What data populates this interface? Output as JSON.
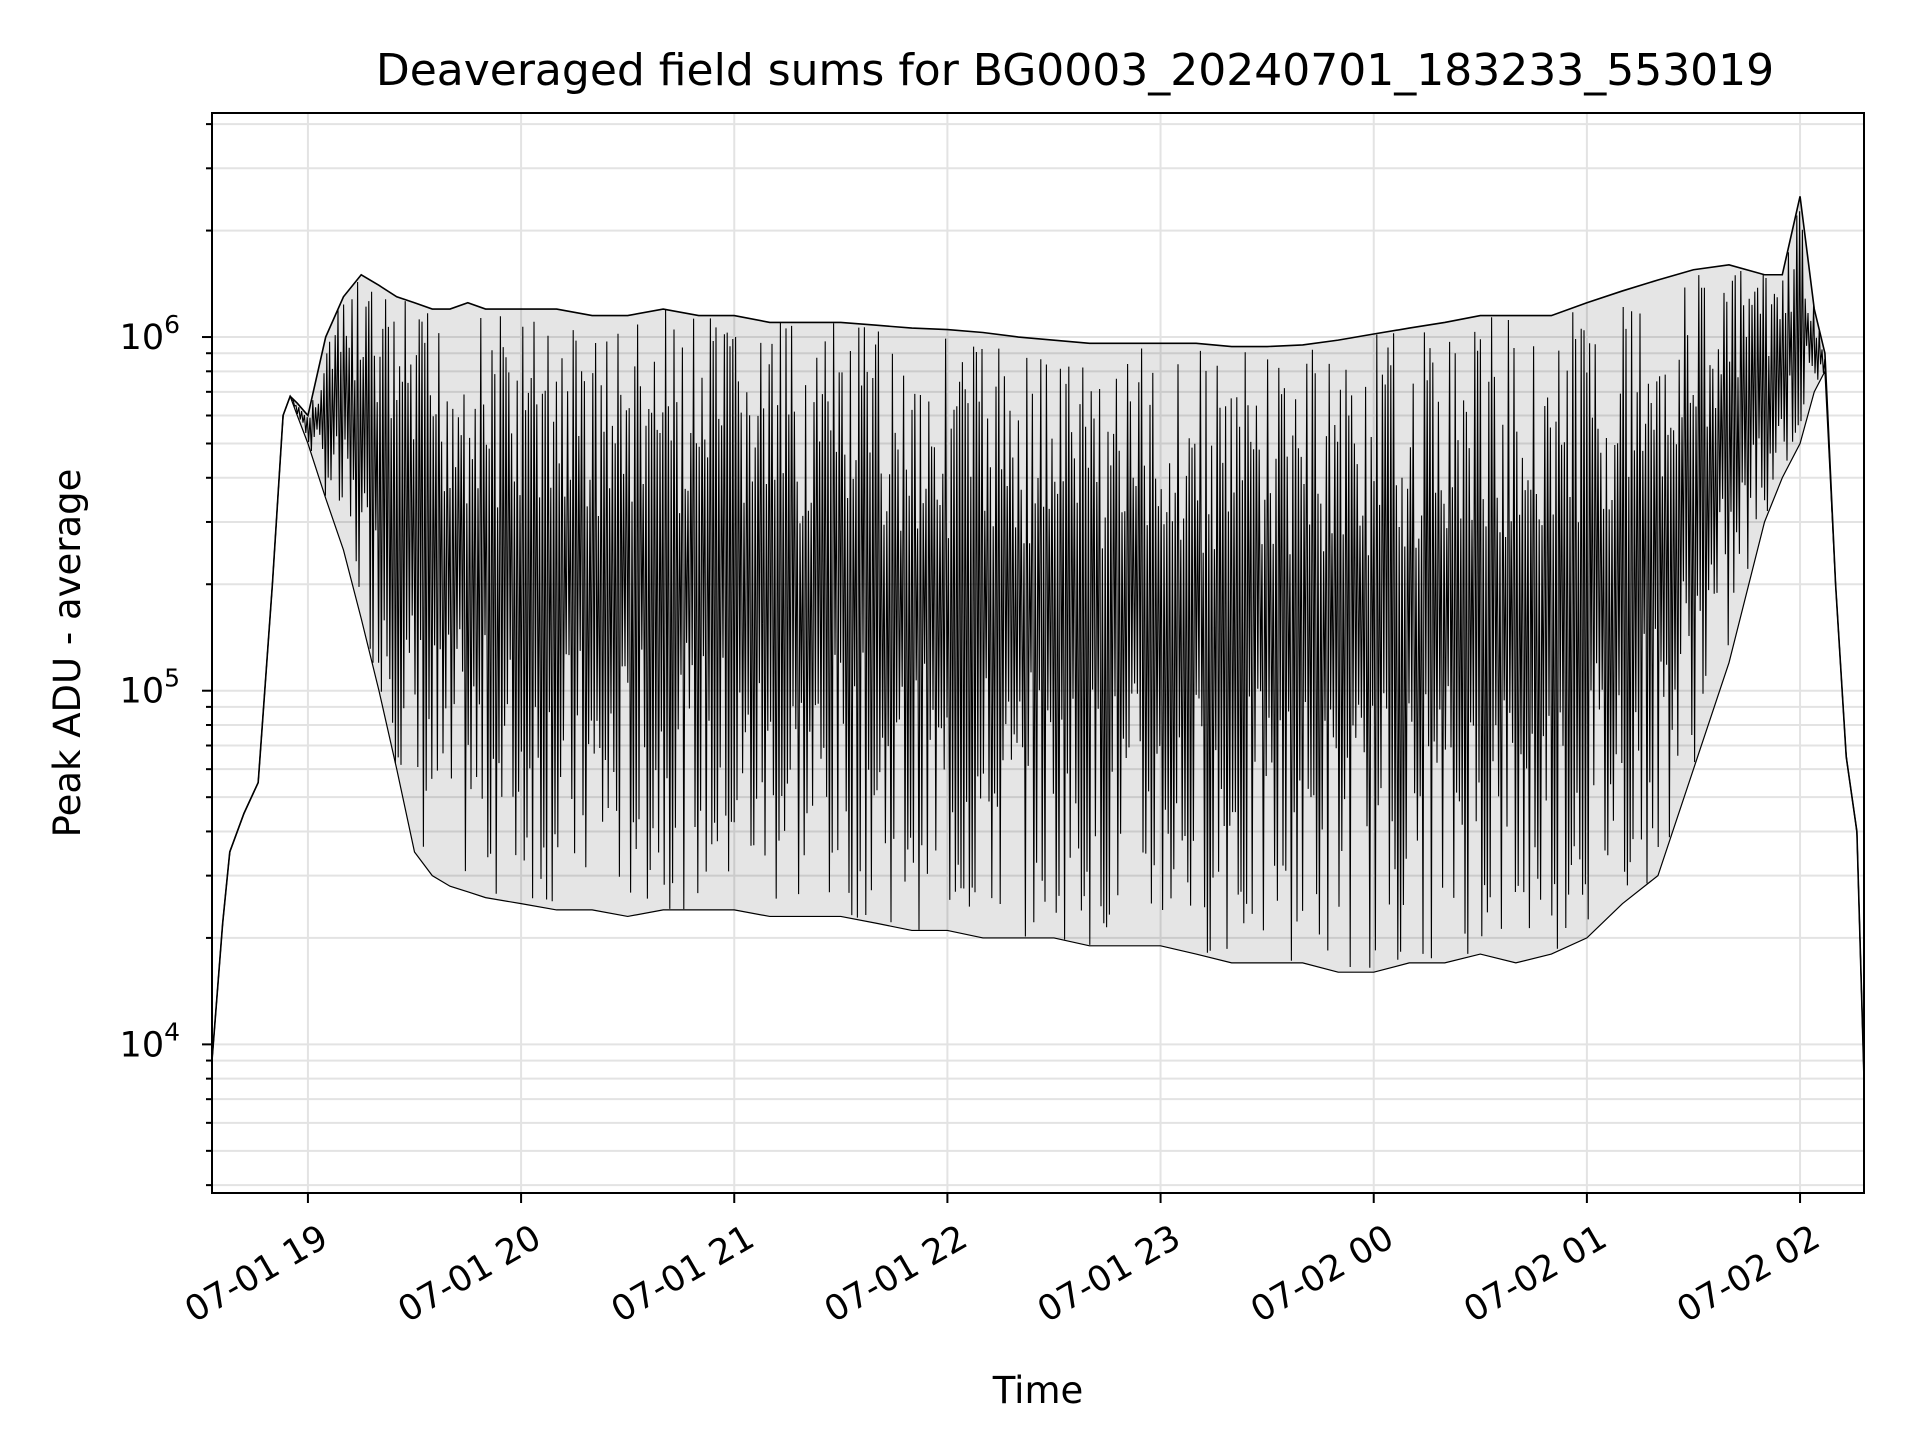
{
  "chart_data": {
    "type": "line",
    "title": "Deaveraged field sums for BG0003_20240701_183233_553019",
    "xlabel": "Time",
    "ylabel": "Peak ADU - average",
    "x_scale": "time",
    "y_scale": "log",
    "xlim": [
      "2024-07-01 18:33",
      "2024-07-02 02:18"
    ],
    "ylim": [
      3800,
      4300000
    ],
    "x_ticks": [
      {
        "value": "2024-07-01 19:00",
        "label": "07-01 19"
      },
      {
        "value": "2024-07-01 20:00",
        "label": "07-01 20"
      },
      {
        "value": "2024-07-01 21:00",
        "label": "07-01 21"
      },
      {
        "value": "2024-07-01 22:00",
        "label": "07-01 22"
      },
      {
        "value": "2024-07-01 23:00",
        "label": "07-01 23"
      },
      {
        "value": "2024-07-02 00:00",
        "label": "07-02 00"
      },
      {
        "value": "2024-07-02 01:00",
        "label": "07-02 01"
      },
      {
        "value": "2024-07-02 02:00",
        "label": "07-02 02"
      }
    ],
    "y_ticks": [
      {
        "value": 10000,
        "base": "10",
        "exp": "4"
      },
      {
        "value": 100000,
        "base": "10",
        "exp": "5"
      },
      {
        "value": 1000000,
        "base": "10",
        "exp": "6"
      }
    ],
    "grid": true,
    "line_color": "#000000",
    "series": [
      {
        "x": [
          "2024-07-01 18:33",
          "2024-07-01 18:36",
          "2024-07-01 18:38",
          "2024-07-01 18:42",
          "2024-07-01 18:46",
          "2024-07-01 18:50",
          "2024-07-01 18:53",
          "2024-07-01 18:55",
          "2024-07-01 18:57",
          "2024-07-01 19:00",
          "2024-07-01 19:05",
          "2024-07-01 19:10",
          "2024-07-01 19:15",
          "2024-07-01 19:20",
          "2024-07-01 19:25",
          "2024-07-01 19:30",
          "2024-07-01 19:35",
          "2024-07-01 19:40",
          "2024-07-01 19:45",
          "2024-07-01 19:50",
          "2024-07-01 20:00",
          "2024-07-01 20:10",
          "2024-07-01 20:20",
          "2024-07-01 20:30",
          "2024-07-01 20:40",
          "2024-07-01 20:50",
          "2024-07-01 21:00",
          "2024-07-01 21:10",
          "2024-07-01 21:20",
          "2024-07-01 21:30",
          "2024-07-01 21:40",
          "2024-07-01 21:50",
          "2024-07-01 22:00",
          "2024-07-01 22:10",
          "2024-07-01 22:20",
          "2024-07-01 22:30",
          "2024-07-01 22:40",
          "2024-07-01 22:50",
          "2024-07-01 23:00",
          "2024-07-01 23:10",
          "2024-07-01 23:20",
          "2024-07-01 23:30",
          "2024-07-01 23:40",
          "2024-07-01 23:50",
          "2024-07-02 00:00",
          "2024-07-02 00:10",
          "2024-07-02 00:20",
          "2024-07-02 00:30",
          "2024-07-02 00:40",
          "2024-07-02 00:50",
          "2024-07-02 01:00",
          "2024-07-02 01:10",
          "2024-07-02 01:20",
          "2024-07-02 01:30",
          "2024-07-02 01:40",
          "2024-07-02 01:50",
          "2024-07-02 01:55",
          "2024-07-02 02:00",
          "2024-07-02 02:04",
          "2024-07-02 02:07",
          "2024-07-02 02:10",
          "2024-07-02 02:13",
          "2024-07-02 02:16",
          "2024-07-02 02:18"
        ],
        "upper": [
          9000,
          22000,
          35000,
          45000,
          55000,
          200000,
          600000,
          680000,
          650000,
          600000,
          1000000,
          1300000,
          1500000,
          1400000,
          1300000,
          1250000,
          1200000,
          1200000,
          1250000,
          1200000,
          1200000,
          1200000,
          1150000,
          1150000,
          1200000,
          1150000,
          1150000,
          1100000,
          1100000,
          1100000,
          1080000,
          1060000,
          1050000,
          1030000,
          1000000,
          980000,
          960000,
          960000,
          960000,
          960000,
          940000,
          940000,
          950000,
          980000,
          1020000,
          1060000,
          1100000,
          1150000,
          1150000,
          1150000,
          1250000,
          1350000,
          1450000,
          1550000,
          1600000,
          1500000,
          1500000,
          2500000,
          1200000,
          900000,
          200000,
          65000,
          40000,
          8000
        ],
        "lower": [
          9000,
          22000,
          35000,
          45000,
          55000,
          200000,
          600000,
          680000,
          600000,
          500000,
          350000,
          250000,
          160000,
          100000,
          60000,
          35000,
          30000,
          28000,
          27000,
          26000,
          25000,
          24000,
          24000,
          23000,
          24000,
          24000,
          24000,
          23000,
          23000,
          23000,
          22000,
          21000,
          21000,
          20000,
          20000,
          20000,
          19000,
          19000,
          19000,
          18000,
          17000,
          17000,
          17000,
          16000,
          16000,
          17000,
          17000,
          18000,
          17000,
          18000,
          20000,
          25000,
          30000,
          60000,
          120000,
          300000,
          400000,
          500000,
          700000,
          800000,
          200000,
          65000,
          40000,
          8000
        ]
      }
    ]
  }
}
